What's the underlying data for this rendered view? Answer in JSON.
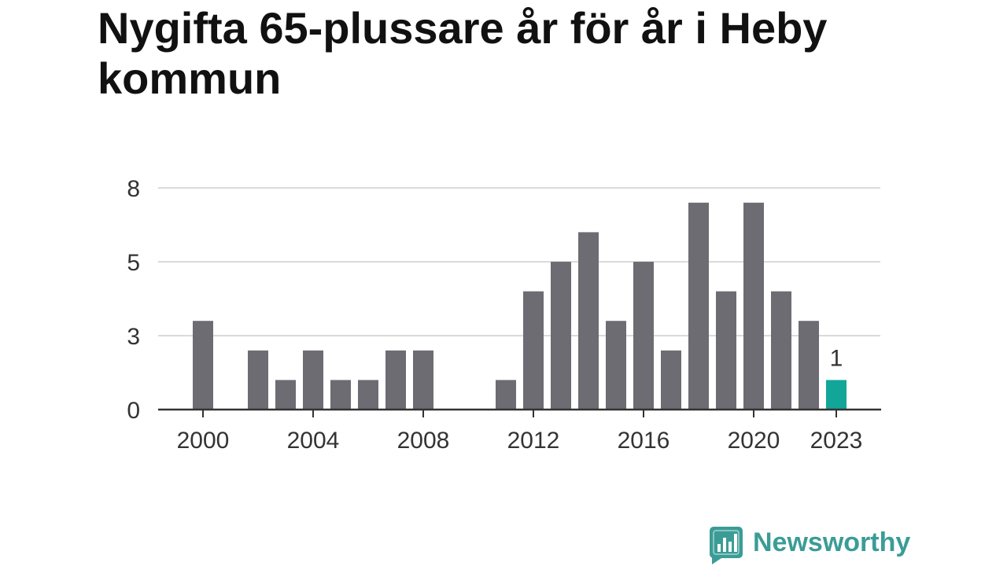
{
  "chart_data": {
    "type": "bar",
    "title": "Nygifta 65-plussare år för år i Heby kommun",
    "x": [
      2000,
      2001,
      2002,
      2003,
      2004,
      2005,
      2006,
      2007,
      2008,
      2009,
      2010,
      2011,
      2012,
      2013,
      2014,
      2015,
      2016,
      2017,
      2018,
      2019,
      2020,
      2021,
      2022,
      2023
    ],
    "values": [
      3,
      0,
      2,
      1,
      2,
      1,
      1,
      2,
      2,
      0,
      0,
      1,
      4,
      5,
      6,
      3,
      5,
      2,
      7,
      4,
      7,
      4,
      3,
      1
    ],
    "xtick_labels": [
      "2000",
      "2004",
      "2008",
      "2012",
      "2016",
      "2020",
      "2023"
    ],
    "ylim": [
      0,
      7.5
    ],
    "yticks": [
      0,
      2.5,
      5,
      7.5
    ],
    "ytick_labels": [
      "0",
      "3",
      "5",
      "8"
    ],
    "highlight_x": 2023,
    "data_labels": [
      {
        "x": 2023,
        "text": "1"
      }
    ],
    "xlabel": "",
    "ylabel": "",
    "grid": true,
    "colors": {
      "bar": "#6d6c73",
      "highlight": "#12a699",
      "grid": "#dadada",
      "axis": "#333333"
    }
  },
  "branding": {
    "logo_icon": "newsworthy-logo-icon",
    "logo_text": "Newsworthy",
    "color": "#3b9c96"
  }
}
